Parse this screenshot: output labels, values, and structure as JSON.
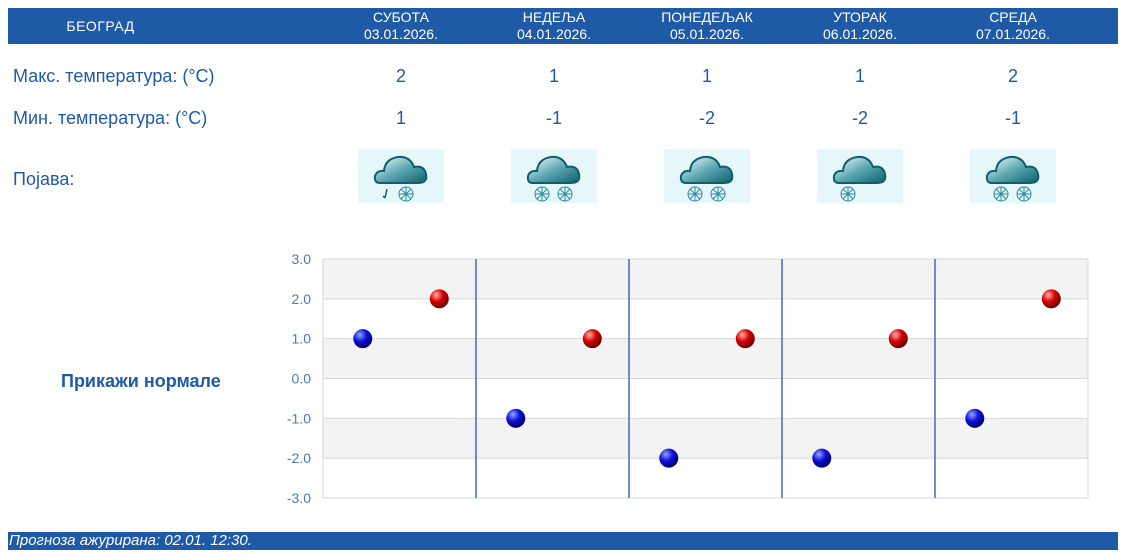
{
  "header": {
    "city": "БЕОГРАД",
    "days": [
      {
        "name": "СУБОТА",
        "date": "03.01.2026."
      },
      {
        "name": "НЕДЕЉА",
        "date": "04.01.2026."
      },
      {
        "name": "ПОНЕДЕЉАК",
        "date": "05.01.2026."
      },
      {
        "name": "УТОРАК",
        "date": "06.01.2026."
      },
      {
        "name": "СРЕДА",
        "date": "07.01.2026."
      }
    ]
  },
  "rows": {
    "max_label": "Макс. температура: (°C)",
    "min_label": "Мин. температура: (°C)",
    "phenomenon_label": "Појава:",
    "max": [
      "2",
      "1",
      "1",
      "1",
      "2"
    ],
    "min": [
      "1",
      "-1",
      "-2",
      "-2",
      "-1"
    ],
    "icons": [
      "cloud-rain-snow-icon",
      "cloud-snow-icon",
      "cloud-snow-icon",
      "cloud-light-snow-icon",
      "cloud-snow-icon"
    ]
  },
  "normals_button": "Прикажи нормале",
  "chart_data": {
    "type": "scatter",
    "categories": [
      "03.01.2026.",
      "04.01.2026.",
      "05.01.2026.",
      "06.01.2026.",
      "07.01.2026."
    ],
    "series": [
      {
        "values": [
          1,
          -1,
          -2,
          -2,
          -1
        ],
        "color": "#0000cc"
      },
      {
        "values": [
          2,
          1,
          1,
          1,
          2
        ],
        "color": "#cc0000"
      }
    ],
    "yticks": [
      "3.0",
      "2.0",
      "1.0",
      "0.0",
      "-1.0",
      "-2.0",
      "-3.0"
    ],
    "ylim": [
      -3,
      3
    ],
    "grid": true
  },
  "footer": {
    "text": "Прогноза ажурирана:  02.01. 12:30."
  }
}
